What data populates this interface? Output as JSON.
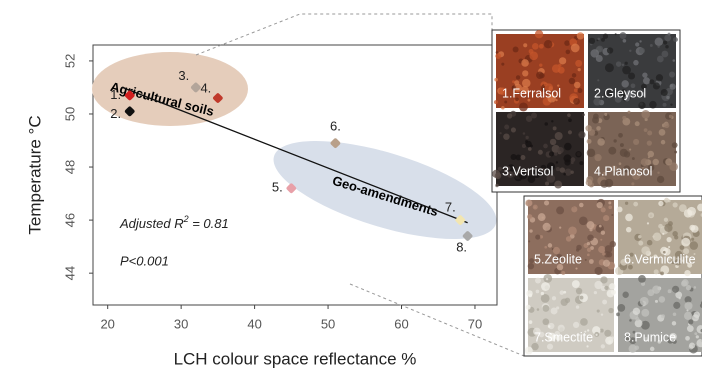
{
  "chart_data": {
    "type": "scatter",
    "x_label": "LCH colour space reflectance %",
    "y_label": "Temperature °C",
    "xlim": [
      18,
      73
    ],
    "ylim": [
      42.8,
      52.6
    ],
    "xticks": [
      20,
      30,
      40,
      50,
      60,
      70
    ],
    "yticks": [
      44,
      46,
      48,
      50,
      52
    ],
    "point_labels": [
      "1.",
      "2.",
      "3.",
      "4.",
      "5.",
      "6.",
      "7.",
      "8."
    ],
    "x": [
      23,
      23,
      32,
      35,
      45,
      51,
      68,
      69
    ],
    "values": [
      50.7,
      50.1,
      51.0,
      50.6,
      47.2,
      48.9,
      46.0,
      45.4
    ],
    "colors": [
      "#d11f1f",
      "#111111",
      "#b3a59a",
      "#c0392b",
      "#e8a0a8",
      "#b9a08a",
      "#f3e6b0",
      "#a9a9a9"
    ],
    "trend": {
      "x": [
        22,
        69
      ],
      "values": [
        51.0,
        45.9
      ]
    },
    "annotations": [
      "Agricultural soils",
      "Geo-amendments"
    ],
    "stats": {
      "r2_label": "Adjusted R",
      "r2_sup": "2",
      "r2_value": " = 0.81",
      "p": "P<0.001"
    },
    "soil_panels": [
      "1.Ferralsol",
      "2.Gleysol",
      "3.Vertisol",
      "4.Planosol"
    ],
    "amendment_panels": [
      "5.Zeolite",
      "6.Vermiculite",
      "7.Smectite",
      "8.Pumice"
    ]
  }
}
